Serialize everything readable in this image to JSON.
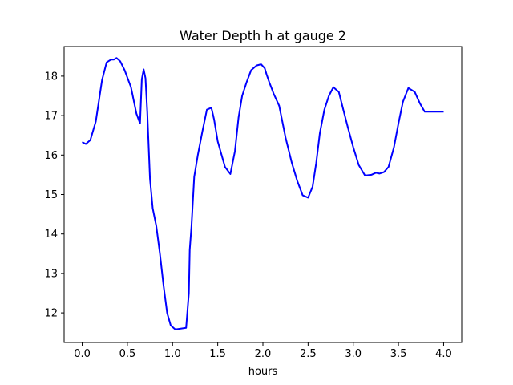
{
  "chart_data": {
    "type": "line",
    "title": "Water Depth h at gauge 2",
    "xlabel": "hours",
    "ylabel": "",
    "xlim": [
      -0.2,
      4.2
    ],
    "ylim": [
      11.25,
      18.75
    ],
    "xticks": [
      0.0,
      0.5,
      1.0,
      1.5,
      2.0,
      2.5,
      3.0,
      3.5,
      4.0
    ],
    "xtick_labels": [
      "0.0",
      "0.5",
      "1.0",
      "1.5",
      "2.0",
      "2.5",
      "3.0",
      "3.5",
      "4.0"
    ],
    "yticks": [
      12,
      13,
      14,
      15,
      16,
      17,
      18
    ],
    "ytick_labels": [
      "12",
      "13",
      "14",
      "15",
      "16",
      "17",
      "18"
    ],
    "grid": false,
    "series": [
      {
        "color": "#0000ff",
        "x": [
          0.0,
          0.04,
          0.09,
          0.15,
          0.22,
          0.27,
          0.32,
          0.35,
          0.38,
          0.42,
          0.47,
          0.54,
          0.6,
          0.64,
          0.66,
          0.68,
          0.7,
          0.72,
          0.75,
          0.78,
          0.82,
          0.86,
          0.9,
          0.94,
          0.98,
          1.03,
          1.09,
          1.15,
          1.18,
          1.19,
          1.21,
          1.24,
          1.28,
          1.33,
          1.38,
          1.43,
          1.46,
          1.5,
          1.58,
          1.64,
          1.69,
          1.73,
          1.77,
          1.82,
          1.87,
          1.93,
          1.98,
          2.02,
          2.04,
          2.07,
          2.12,
          2.18,
          2.25,
          2.32,
          2.38,
          2.44,
          2.5,
          2.55,
          2.59,
          2.63,
          2.68,
          2.73,
          2.78,
          2.84,
          2.89,
          2.94,
          3.0,
          3.06,
          3.13,
          3.2,
          3.25,
          3.29,
          3.34,
          3.39,
          3.45,
          3.5,
          3.55,
          3.61,
          3.68,
          3.74,
          3.79,
          3.83,
          3.87,
          3.9,
          3.95,
          4.0
        ],
        "y": [
          16.33,
          16.28,
          16.38,
          16.85,
          17.9,
          18.35,
          18.42,
          18.42,
          18.46,
          18.38,
          18.15,
          17.72,
          17.05,
          16.8,
          17.92,
          18.17,
          17.95,
          17.1,
          15.4,
          14.65,
          14.2,
          13.5,
          12.7,
          12.0,
          11.68,
          11.58,
          11.6,
          11.62,
          12.5,
          13.6,
          14.2,
          15.45,
          16.0,
          16.6,
          17.15,
          17.2,
          16.9,
          16.35,
          15.7,
          15.52,
          16.1,
          16.95,
          17.5,
          17.85,
          18.15,
          18.27,
          18.3,
          18.2,
          18.05,
          17.85,
          17.55,
          17.25,
          16.45,
          15.8,
          15.35,
          14.98,
          14.92,
          15.2,
          15.8,
          16.55,
          17.15,
          17.5,
          17.72,
          17.6,
          17.15,
          16.7,
          16.2,
          15.75,
          15.48,
          15.5,
          15.55,
          15.53,
          15.57,
          15.7,
          16.2,
          16.8,
          17.35,
          17.7,
          17.6,
          17.3,
          17.1,
          17.1,
          17.1,
          17.1,
          17.1,
          17.1
        ]
      }
    ]
  }
}
